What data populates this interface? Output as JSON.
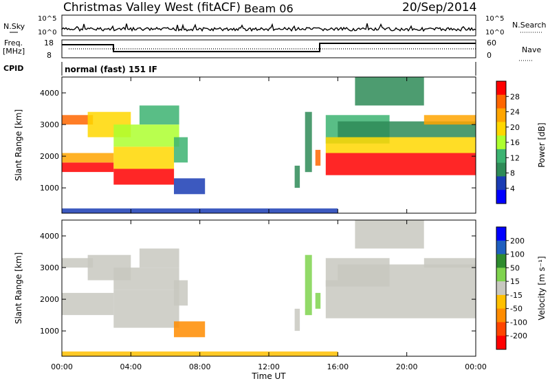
{
  "header": {
    "station": "Christmas Valley West (fitACF)",
    "beam": "Beam 06",
    "date": "20/Sep/2014"
  },
  "summary": {
    "nsky_label": "N.Sky",
    "nsky_ticks": [
      "10^5",
      "10^0"
    ],
    "nsearch_label": "N.Search",
    "nsearch_ticks": [
      "10^5",
      "10^0"
    ],
    "freq_label_1": "Freq.",
    "freq_label_2": "[MHz]",
    "freq_ticks": [
      "18",
      "8"
    ],
    "nave_label": "Nave",
    "nave_ticks": [
      "60",
      "0"
    ],
    "cpid_label": "CPID",
    "cpid_text": "normal (fast) 151 IF"
  },
  "colors": {
    "power": [
      "#0000ff",
      "#1a3cb4",
      "#2e8b57",
      "#3cb371",
      "#adff2f",
      "#ffd700",
      "#ffa500",
      "#ff6600",
      "#ff0000"
    ],
    "velocity": [
      "#0000ff",
      "#1f5fbf",
      "#2e8b2e",
      "#7fd34e",
      "#c8c8c0",
      "#ffc000",
      "#ff8c00",
      "#ff4500",
      "#ff0000"
    ]
  },
  "chart_data": [
    {
      "type": "heatmap",
      "name": "power",
      "ylabel": "Slant Range [km]",
      "yticks": [
        1000,
        2000,
        3000,
        4000
      ],
      "ylim": [
        200,
        4500
      ],
      "xlim": [
        0,
        24
      ],
      "colorbar_label": "Power [dB]",
      "colorbar_ticks": [
        "4",
        "8",
        "12",
        "16",
        "20",
        "24",
        "28"
      ],
      "bands": [
        {
          "t0": 0.0,
          "t1": 3.0,
          "r0": 1500,
          "r1": 1800,
          "level": 8
        },
        {
          "t0": 0.0,
          "t1": 3.0,
          "r0": 1800,
          "r1": 2100,
          "level": 6
        },
        {
          "t0": 0.0,
          "t1": 1.8,
          "r0": 3000,
          "r1": 3300,
          "level": 7
        },
        {
          "t0": 1.5,
          "t1": 4.0,
          "r0": 2600,
          "r1": 3400,
          "level": 5
        },
        {
          "t0": 3.0,
          "t1": 6.5,
          "r0": 1100,
          "r1": 1600,
          "level": 8
        },
        {
          "t0": 3.0,
          "t1": 6.5,
          "r0": 1600,
          "r1": 2300,
          "level": 5
        },
        {
          "t0": 3.0,
          "t1": 6.8,
          "r0": 2300,
          "r1": 3000,
          "level": 4
        },
        {
          "t0": 4.5,
          "t1": 6.8,
          "r0": 3000,
          "r1": 3600,
          "level": 3
        },
        {
          "t0": 6.5,
          "t1": 7.3,
          "r0": 1800,
          "r1": 2600,
          "level": 3
        },
        {
          "t0": 6.5,
          "t1": 8.3,
          "r0": 800,
          "r1": 1300,
          "level": 1
        },
        {
          "t0": 14.1,
          "t1": 14.5,
          "r0": 1500,
          "r1": 3400,
          "level": 2
        },
        {
          "t0": 14.7,
          "t1": 15.0,
          "r0": 1700,
          "r1": 2200,
          "level": 7
        },
        {
          "t0": 13.5,
          "t1": 13.8,
          "r0": 1000,
          "r1": 1700,
          "level": 2
        },
        {
          "t0": 15.3,
          "t1": 19.0,
          "r0": 2400,
          "r1": 3300,
          "level": 3
        },
        {
          "t0": 15.3,
          "t1": 24.0,
          "r0": 1400,
          "r1": 2100,
          "level": 8
        },
        {
          "t0": 15.3,
          "t1": 24.0,
          "r0": 2100,
          "r1": 2600,
          "level": 5
        },
        {
          "t0": 16.0,
          "t1": 24.0,
          "r0": 2600,
          "r1": 3100,
          "level": 2
        },
        {
          "t0": 17.0,
          "t1": 21.0,
          "r0": 3600,
          "r1": 4500,
          "level": 2
        },
        {
          "t0": 21.0,
          "t1": 24.0,
          "r0": 3000,
          "r1": 3300,
          "level": 6
        },
        {
          "t0": 0.0,
          "t1": 16.0,
          "r0": 200,
          "r1": 350,
          "level": 1
        }
      ]
    },
    {
      "type": "heatmap",
      "name": "velocity",
      "ylabel": "Slant Range [km]",
      "yticks": [
        1000,
        2000,
        3000,
        4000
      ],
      "ylim": [
        200,
        4500
      ],
      "xlim": [
        0,
        24
      ],
      "xticks": [
        "00:00",
        "04:00",
        "08:00",
        "12:00",
        "16:00",
        "20:00",
        "00:00"
      ],
      "xlabel": "Time UT",
      "colorbar_label": "Velocity [m s⁻¹]",
      "colorbar_ticks": [
        "200",
        "100",
        "50",
        "15",
        "-15",
        "-50",
        "-100",
        "-200"
      ],
      "bands": [
        {
          "t0": 0.0,
          "t1": 3.0,
          "r0": 1500,
          "r1": 2200,
          "level": 4
        },
        {
          "t0": 0.0,
          "t1": 1.8,
          "r0": 3000,
          "r1": 3300,
          "level": 4
        },
        {
          "t0": 1.5,
          "t1": 4.0,
          "r0": 2600,
          "r1": 3400,
          "level": 4
        },
        {
          "t0": 3.0,
          "t1": 6.8,
          "r0": 1100,
          "r1": 2300,
          "level": 4
        },
        {
          "t0": 3.0,
          "t1": 6.8,
          "r0": 2300,
          "r1": 3000,
          "level": 4
        },
        {
          "t0": 4.5,
          "t1": 6.8,
          "r0": 3000,
          "r1": 3600,
          "level": 4
        },
        {
          "t0": 6.5,
          "t1": 7.3,
          "r0": 1800,
          "r1": 2600,
          "level": 4
        },
        {
          "t0": 6.5,
          "t1": 8.3,
          "r0": 800,
          "r1": 1300,
          "level": 6
        },
        {
          "t0": 14.1,
          "t1": 14.5,
          "r0": 1500,
          "r1": 3400,
          "level": 3
        },
        {
          "t0": 14.7,
          "t1": 15.0,
          "r0": 1700,
          "r1": 2200,
          "level": 3
        },
        {
          "t0": 13.5,
          "t1": 13.8,
          "r0": 1000,
          "r1": 1700,
          "level": 4
        },
        {
          "t0": 15.3,
          "t1": 19.0,
          "r0": 2400,
          "r1": 3300,
          "level": 4
        },
        {
          "t0": 15.3,
          "t1": 24.0,
          "r0": 1400,
          "r1": 2600,
          "level": 4
        },
        {
          "t0": 16.0,
          "t1": 24.0,
          "r0": 2600,
          "r1": 3100,
          "level": 4
        },
        {
          "t0": 17.0,
          "t1": 21.0,
          "r0": 3600,
          "r1": 4500,
          "level": 4
        },
        {
          "t0": 21.0,
          "t1": 24.0,
          "r0": 3000,
          "r1": 3300,
          "level": 4
        },
        {
          "t0": 0.0,
          "t1": 16.0,
          "r0": 200,
          "r1": 350,
          "level": 5
        }
      ]
    }
  ]
}
